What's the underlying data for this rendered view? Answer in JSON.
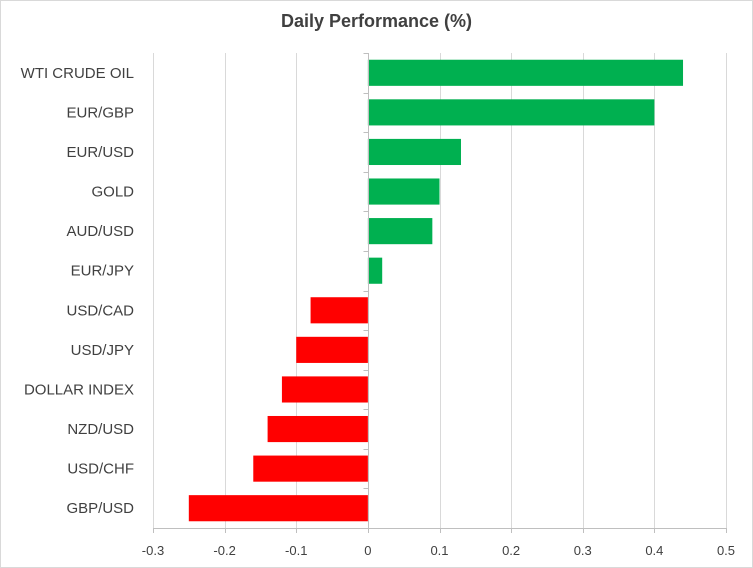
{
  "chart_data": {
    "type": "bar",
    "orientation": "horizontal",
    "title": "Daily Performance  (%)",
    "categories": [
      "WTI CRUDE OIL",
      "EUR/GBP",
      "EUR/USD",
      "GOLD",
      "AUD/USD",
      "EUR/JPY",
      "USD/CAD",
      "USD/JPY",
      "DOLLAR INDEX",
      "NZD/USD",
      "USD/CHF",
      "GBP/USD"
    ],
    "values": [
      0.44,
      0.4,
      0.13,
      0.1,
      0.09,
      0.02,
      -0.08,
      -0.1,
      -0.12,
      -0.14,
      -0.16,
      -0.25
    ],
    "xlim": [
      -0.3,
      0.5
    ],
    "xticks": [
      -0.3,
      -0.2,
      -0.1,
      0,
      0.1,
      0.2,
      0.3,
      0.4,
      0.5
    ],
    "xtick_labels": [
      "-0.3",
      "-0.2",
      "-0.1",
      "0",
      "0.1",
      "0.2",
      "0.3",
      "0.4",
      "0.5"
    ],
    "grid": "vertical",
    "colors": {
      "positive": "#00b050",
      "negative": "#ff0000",
      "grid": "#d9d9d9",
      "axis": "#bfbfbf",
      "text": "#404040"
    }
  }
}
